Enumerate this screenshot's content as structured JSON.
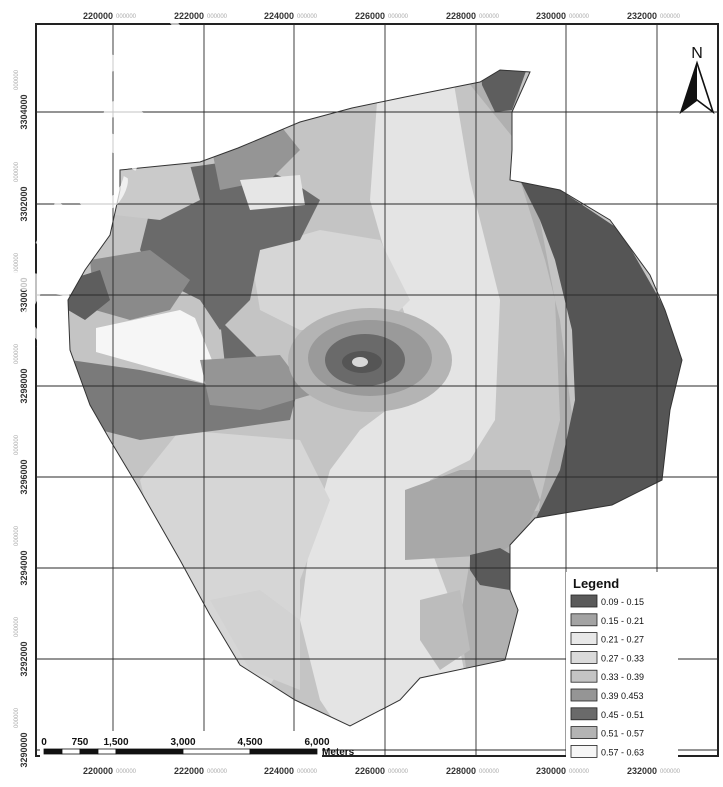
{
  "map": {
    "x_ticks": [
      "220000",
      "222000",
      "224000",
      "226000",
      "228000",
      "230000",
      "232000"
    ],
    "y_ticks": [
      "3304000",
      "3302000",
      "3300000",
      "3298000",
      "3296000",
      "3294000",
      "3292000",
      "3290000"
    ],
    "tick_suffix": "000000"
  },
  "north_arrow": {
    "label": "N"
  },
  "legend": {
    "title": "Legend",
    "classes": [
      {
        "label": "0.09 - 0.15",
        "color": "#5a5a5a"
      },
      {
        "label": "0.15 - 0.21",
        "color": "#a3a3a3"
      },
      {
        "label": "0.21 - 0.27",
        "color": "#e8e8e8"
      },
      {
        "label": "0.27 - 0.33",
        "color": "#dadada"
      },
      {
        "label": "0.33 - 0.39",
        "color": "#c4c4c4"
      },
      {
        "label": "0.39 0.453",
        "color": "#959595"
      },
      {
        "label": "0.45 - 0.51",
        "color": "#6a6a6a"
      },
      {
        "label": "0.51 - 0.57",
        "color": "#b4b4b4"
      },
      {
        "label": "0.57 - 0.63",
        "color": "#f6f6f6"
      }
    ]
  },
  "scale_bar": {
    "labels": [
      "0",
      "750",
      "1,500",
      "3,000",
      "4,500",
      "6,000"
    ],
    "unit": "Meters"
  },
  "watermark": {
    "text": "Archive"
  }
}
